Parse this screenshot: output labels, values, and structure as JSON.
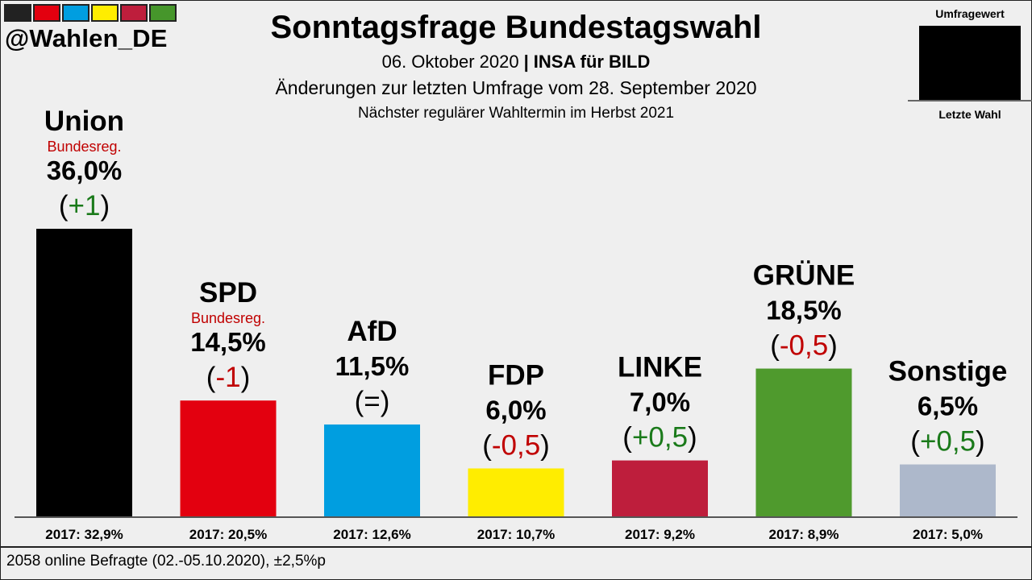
{
  "brand": {
    "handle": "@Wahlen_DE",
    "swatch_colors": [
      "#222222",
      "#e3000f",
      "#009ee0",
      "#ffed00",
      "#be1e3c",
      "#46962b"
    ]
  },
  "header": {
    "title": "Sonntagsfrage Bundestagswahl",
    "date": "06. Oktober 2020",
    "separator": "|",
    "institute": "INSA für BILD",
    "changes_note": "Änderungen zur letzten Umfrage vom 28. September 2020",
    "next_election": "Nächster regulärer Wahltermin im Herbst 2021"
  },
  "legend": {
    "top_label": "Umfragewert",
    "bottom_label": "Letzte Wahl"
  },
  "chart_data": {
    "type": "bar",
    "categories": [
      "Union",
      "SPD",
      "AfD",
      "FDP",
      "LINKE",
      "GRÜNE",
      "Sonstige"
    ],
    "values": [
      36.0,
      14.5,
      11.5,
      6.0,
      7.0,
      18.5,
      6.5
    ],
    "value_labels": [
      "36,0%",
      "14,5%",
      "11,5%",
      "6,0%",
      "7,0%",
      "18,5%",
      "6,5%"
    ],
    "changes": [
      {
        "open": "(",
        "value": "+1",
        "close": ")",
        "direction": "up"
      },
      {
        "open": "(",
        "value": "-1",
        "close": ")",
        "direction": "down"
      },
      {
        "open": "(",
        "value": "=",
        "close": ")",
        "direction": "same"
      },
      {
        "open": "(",
        "value": "-0,5",
        "close": ")",
        "direction": "down"
      },
      {
        "open": "(",
        "value": "+0,5",
        "close": ")",
        "direction": "up"
      },
      {
        "open": "(",
        "value": "-0,5",
        "close": ")",
        "direction": "down"
      },
      {
        "open": "(",
        "value": "+0,5",
        "close": ")",
        "direction": "up"
      }
    ],
    "government_tags": [
      "Bundesreg.",
      "Bundesreg.",
      "",
      "",
      "",
      "",
      ""
    ],
    "previous_election": [
      "2017: 32,9%",
      "2017: 20,5%",
      "2017: 12,6%",
      "2017: 10,7%",
      "2017: 9,2%",
      "2017: 8,9%",
      "2017: 5,0%"
    ],
    "colors": [
      "#000000",
      "#e3000f",
      "#009ee0",
      "#ffed00",
      "#be1e3c",
      "#4f9a2d",
      "#adb8cb"
    ],
    "change_colors": {
      "up": "#1a7a1a",
      "down": "#c00000",
      "same": "#000000"
    },
    "ylim": [
      0,
      36
    ]
  },
  "footer": {
    "sample": "2058 online Befragte (02.-05.10.2020), ±2,5%p"
  }
}
